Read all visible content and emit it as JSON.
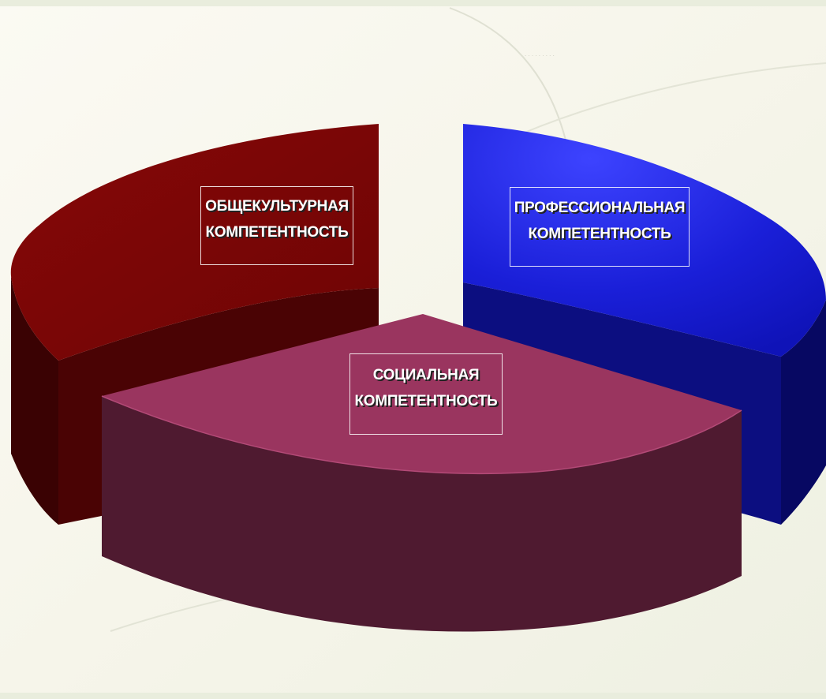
{
  "diagram": {
    "watermark": "· · ·  · · · · · ·",
    "segments": [
      {
        "id": "general",
        "label_line1": "ОБЩЕКУЛЬТУРНАЯ",
        "label_line2": "КОМПЕТЕНТНОСТЬ",
        "top_color": "#7a0606",
        "side_color": "#3f0203"
      },
      {
        "id": "professional",
        "label_line1": "ПРОФЕССИОНАЛЬНАЯ",
        "label_line2": "КОМПЕТЕНТНОСТЬ",
        "top_color": "#1a1fd8",
        "side_color": "#0b0d78"
      },
      {
        "id": "social",
        "label_line1": "СОЦИАЛЬНАЯ",
        "label_line2": "КОМПЕТЕНТНОСТЬ",
        "top_color": "#98345e",
        "side_color": "#4e1a30"
      }
    ],
    "background_color": "#f3f2e7"
  }
}
